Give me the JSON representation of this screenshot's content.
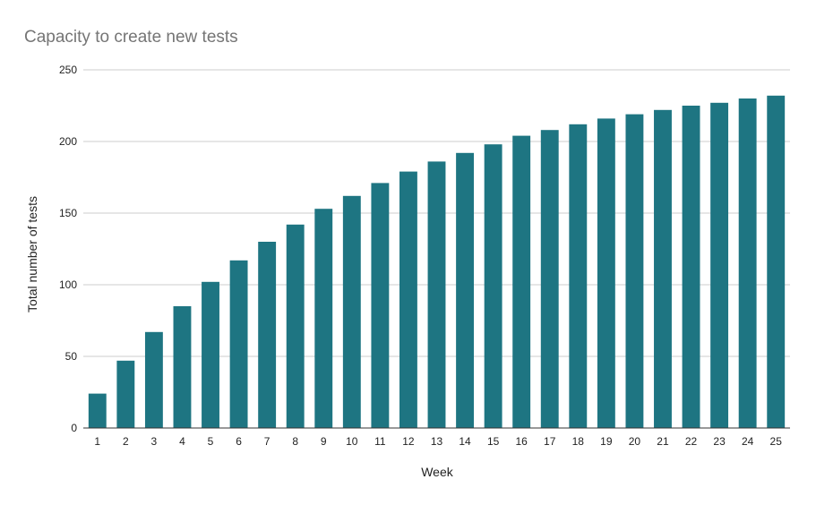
{
  "chart_data": {
    "type": "bar",
    "title": "Capacity to create new tests",
    "xlabel": "Week",
    "ylabel": "Total number of tests",
    "categories": [
      "1",
      "2",
      "3",
      "4",
      "5",
      "6",
      "7",
      "8",
      "9",
      "10",
      "11",
      "12",
      "13",
      "14",
      "15",
      "16",
      "17",
      "18",
      "19",
      "20",
      "21",
      "22",
      "23",
      "24",
      "25"
    ],
    "values": [
      24,
      47,
      67,
      85,
      102,
      117,
      130,
      142,
      153,
      162,
      171,
      179,
      186,
      192,
      198,
      204,
      208,
      212,
      216,
      219,
      222,
      225,
      227,
      230,
      232
    ],
    "ylim": [
      0,
      250
    ],
    "yticks": [
      "0",
      "50",
      "100",
      "150",
      "200",
      "250"
    ],
    "grid": true,
    "legend": "none",
    "bar_color": "#1e7582"
  }
}
